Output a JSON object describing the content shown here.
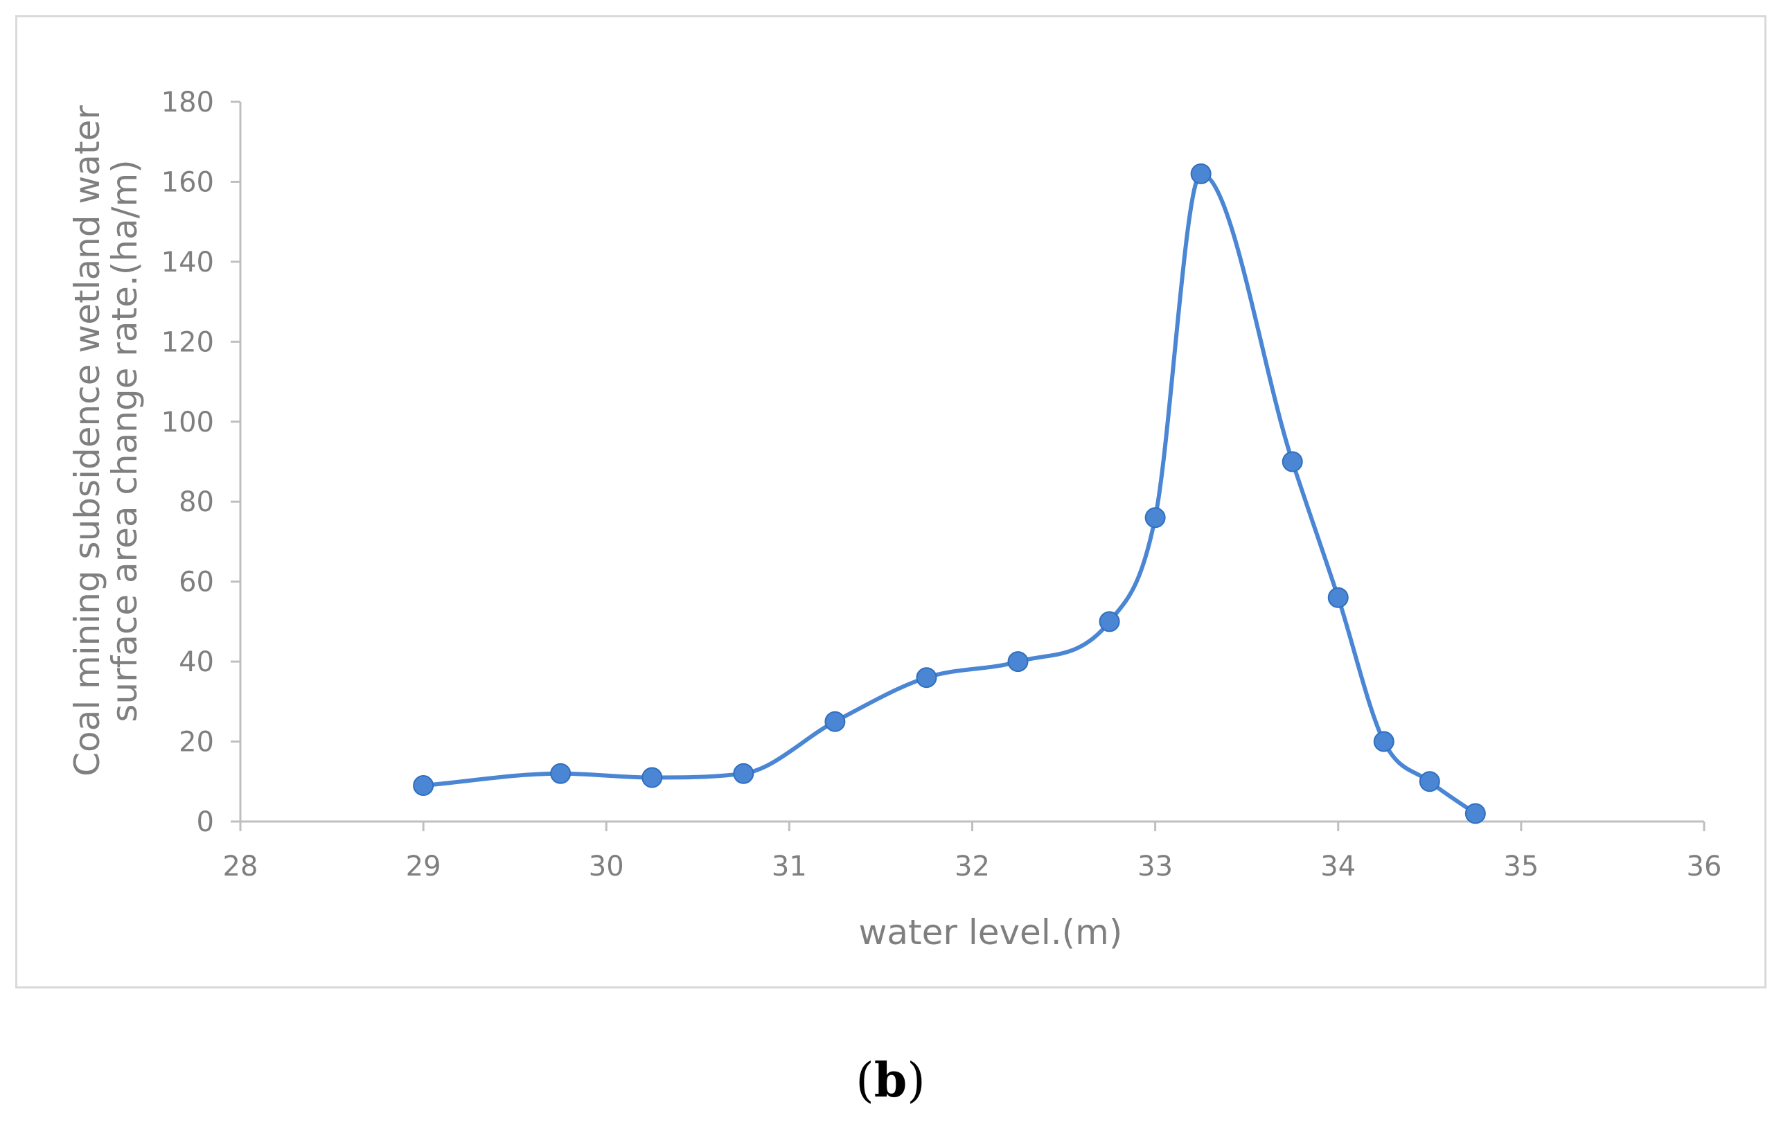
{
  "chart_data": {
    "type": "line",
    "title": "",
    "xlabel": "water level.(m)",
    "ylabel_lines": [
      "Coal mining subsidence wetland water",
      "surface area change rate.(ha/m)"
    ],
    "xlim": [
      28,
      36
    ],
    "ylim": [
      0,
      180
    ],
    "x_ticks": [
      "28",
      "29",
      "30",
      "31",
      "32",
      "33",
      "34",
      "35",
      "36"
    ],
    "y_ticks": [
      "0",
      "20",
      "40",
      "60",
      "80",
      "100",
      "120",
      "140",
      "160",
      "180"
    ],
    "grid": false,
    "smooth": true,
    "series": [
      {
        "name": "area change rate",
        "color": "#4a86d4",
        "x": [
          29.0,
          29.75,
          30.25,
          30.75,
          31.25,
          31.75,
          32.25,
          32.75,
          33.0,
          33.25,
          33.75,
          34.0,
          34.25,
          34.5,
          34.75
        ],
        "y": [
          9,
          12,
          11,
          12,
          25,
          36,
          40,
          50,
          76,
          162,
          90,
          56,
          20,
          10,
          2
        ]
      }
    ]
  },
  "panel_label": {
    "open": "(",
    "letter": "b",
    "close": ")"
  },
  "colors": {
    "axis": "#bfbfbf",
    "text": "#7f7f7f",
    "line": "#4a86d4",
    "marker": "#4a86d4",
    "frame": "#d9d9d9"
  }
}
